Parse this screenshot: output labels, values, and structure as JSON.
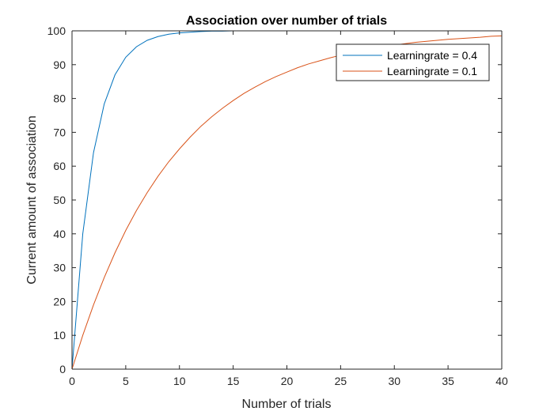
{
  "chart_data": {
    "type": "line",
    "title": "Association over number of trials",
    "xlabel": "Number of trials",
    "ylabel": "Current amount of association",
    "xlim": [
      0,
      40
    ],
    "ylim": [
      0,
      100
    ],
    "xticks": [
      0,
      5,
      10,
      15,
      20,
      25,
      30,
      35,
      40
    ],
    "yticks": [
      0,
      10,
      20,
      30,
      40,
      50,
      60,
      70,
      80,
      90,
      100
    ],
    "grid": false,
    "legend_position": "top-right",
    "series": [
      {
        "name": "Learningrate = 0.4",
        "color": "#0072BD",
        "x": [
          0,
          1,
          2,
          3,
          4,
          5,
          6,
          7,
          8,
          9,
          10,
          11,
          12,
          13,
          14,
          15,
          16,
          17,
          18,
          19,
          20,
          21,
          22,
          23,
          24,
          25,
          26,
          27,
          28,
          29,
          30,
          31,
          32,
          33,
          34,
          35,
          36,
          37,
          38,
          39,
          40
        ],
        "values": [
          0,
          40,
          64,
          78.4,
          87.0,
          92.2,
          95.3,
          97.2,
          98.3,
          99.0,
          99.4,
          99.6,
          99.8,
          99.9,
          99.9,
          100,
          100,
          100,
          100,
          100,
          100,
          100,
          100,
          100,
          100,
          100,
          100,
          100,
          100,
          100,
          100,
          100,
          100,
          100,
          100,
          100,
          100,
          100,
          100,
          100,
          100
        ]
      },
      {
        "name": "Learningrate = 0.1",
        "color": "#D95319",
        "x": [
          0,
          1,
          2,
          3,
          4,
          5,
          6,
          7,
          8,
          9,
          10,
          11,
          12,
          13,
          14,
          15,
          16,
          17,
          18,
          19,
          20,
          21,
          22,
          23,
          24,
          25,
          26,
          27,
          28,
          29,
          30,
          31,
          32,
          33,
          34,
          35,
          36,
          37,
          38,
          39,
          40
        ],
        "values": [
          0,
          10,
          19,
          27.1,
          34.4,
          41.0,
          46.9,
          52.2,
          57.0,
          61.3,
          65.1,
          68.6,
          71.8,
          74.6,
          77.1,
          79.4,
          81.5,
          83.3,
          85.0,
          86.5,
          87.8,
          89.1,
          90.2,
          91.1,
          92.0,
          92.8,
          93.5,
          94.2,
          94.8,
          95.3,
          95.8,
          96.2,
          96.6,
          96.9,
          97.2,
          97.5,
          97.7,
          97.9,
          98.1,
          98.4,
          98.5
        ]
      }
    ]
  }
}
